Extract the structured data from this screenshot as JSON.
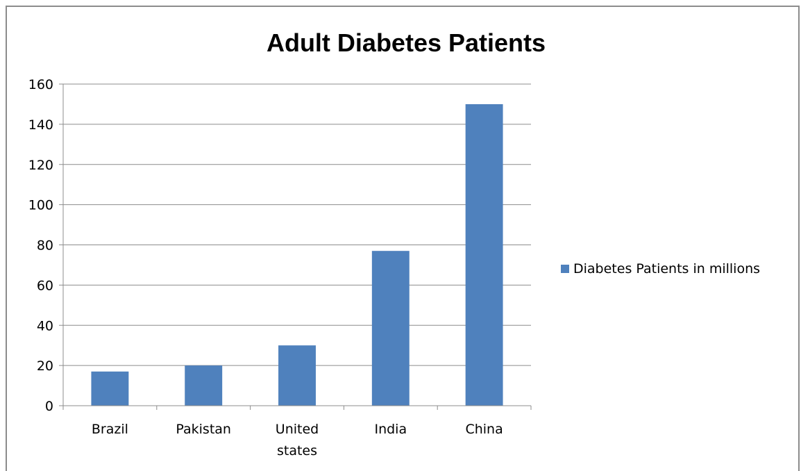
{
  "chart_data": {
    "type": "bar",
    "title": "Adult Diabetes Patients",
    "categories": [
      "Brazil",
      "Pakistan",
      "United states",
      "India",
      "China"
    ],
    "category_lines": [
      [
        "Brazil"
      ],
      [
        "Pakistan"
      ],
      [
        "United",
        "states"
      ],
      [
        "India"
      ],
      [
        "China"
      ]
    ],
    "series": [
      {
        "name": "Diabetes Patients in millions",
        "values": [
          17,
          20,
          30,
          77,
          150
        ],
        "color": "#4f81bd"
      }
    ],
    "xlabel": "",
    "ylabel": "",
    "ylim": [
      0,
      160
    ],
    "yticks": [
      0,
      20,
      40,
      60,
      80,
      100,
      120,
      140,
      160
    ],
    "grid": true,
    "legend_position": "right"
  }
}
